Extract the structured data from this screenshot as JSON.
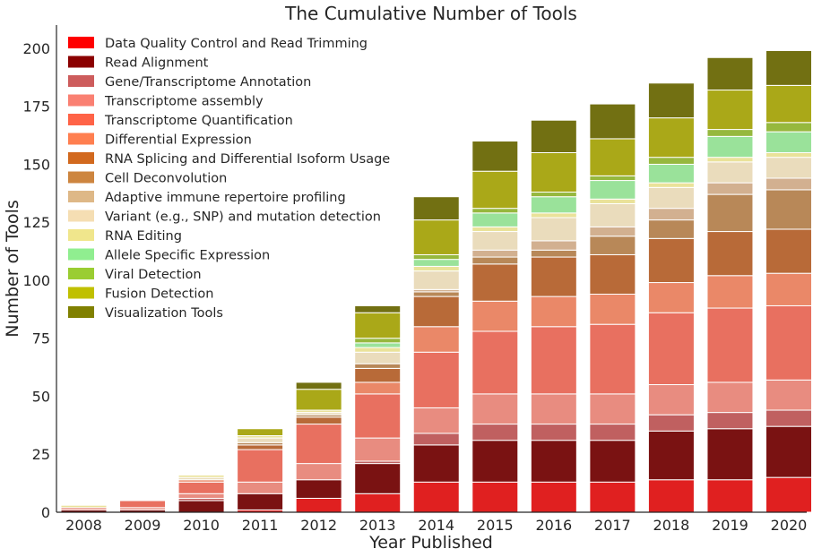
{
  "chart_data": {
    "type": "bar",
    "stacked": true,
    "title": "The Cumulative Number of Tools",
    "xlabel": "Year Published",
    "ylabel": "Number of Tools",
    "ylim": [
      0,
      210
    ],
    "yticks": [
      0,
      25,
      50,
      75,
      100,
      125,
      150,
      175,
      200
    ],
    "grid": false,
    "legend_position": "top-left",
    "categories": [
      "2008",
      "2009",
      "2010",
      "2011",
      "2012",
      "2013",
      "2014",
      "2015",
      "2016",
      "2017",
      "2018",
      "2019",
      "2020"
    ],
    "series": [
      {
        "name": "Data Quality Control and Read Trimming",
        "color": "#ff0000",
        "bar_color": "#e02020",
        "values": [
          0,
          0,
          0,
          1,
          6,
          8,
          13,
          13,
          13,
          13,
          14,
          14,
          15
        ]
      },
      {
        "name": "Read Alignment",
        "color": "#8b0000",
        "bar_color": "#7a1212",
        "values": [
          1,
          1,
          5,
          7,
          8,
          13,
          16,
          18,
          18,
          18,
          21,
          22,
          22
        ]
      },
      {
        "name": "Gene/Transcriptome Annotation",
        "color": "#cd5c5c",
        "bar_color": "#c06060",
        "values": [
          0,
          0,
          1,
          0,
          0,
          1,
          5,
          7,
          7,
          7,
          7,
          7,
          7
        ]
      },
      {
        "name": "Transcriptome assembly",
        "color": "#fa8072",
        "bar_color": "#e88c80",
        "values": [
          1,
          1,
          2,
          5,
          7,
          10,
          11,
          13,
          13,
          13,
          13,
          13,
          13
        ]
      },
      {
        "name": "Transcriptome Quantification",
        "color": "#ff6347",
        "bar_color": "#e87060",
        "values": [
          0,
          3,
          5,
          14,
          17,
          19,
          24,
          27,
          29,
          30,
          31,
          32,
          32
        ]
      },
      {
        "name": "Differential Expression",
        "color": "#ff7f50",
        "bar_color": "#ea8868",
        "values": [
          0,
          0,
          1,
          0,
          0,
          5,
          11,
          13,
          13,
          13,
          13,
          14,
          14
        ]
      },
      {
        "name": "RNA Splicing and Differential Isoform Usage",
        "color": "#d2691e",
        "bar_color": "#b86a38",
        "values": [
          0,
          0,
          0,
          2,
          3,
          6,
          13,
          16,
          17,
          17,
          19,
          19,
          19
        ]
      },
      {
        "name": "Cell Deconvolution",
        "color": "#cd853f",
        "bar_color": "#b88858",
        "values": [
          0,
          0,
          0,
          1,
          1,
          2,
          2,
          3,
          3,
          8,
          8,
          16,
          17
        ]
      },
      {
        "name": "Adaptive immune repertoire profiling",
        "color": "#deb887",
        "bar_color": "#d2b090",
        "values": [
          0,
          0,
          0,
          0,
          0,
          0,
          1,
          3,
          4,
          4,
          5,
          5,
          5
        ]
      },
      {
        "name": "Variant (e.g., SNP) and mutation detection",
        "color": "#f5deb3",
        "bar_color": "#eadcbc",
        "values": [
          0,
          0,
          1,
          2,
          1,
          5,
          8,
          8,
          10,
          10,
          9,
          9,
          9
        ]
      },
      {
        "name": "RNA Editing",
        "color": "#f0e68c",
        "bar_color": "#eae29a",
        "values": [
          1,
          0,
          1,
          1,
          1,
          2,
          2,
          2,
          2,
          2,
          2,
          2,
          2
        ]
      },
      {
        "name": "Allele Specific Expression",
        "color": "#90ee90",
        "bar_color": "#9ae29a",
        "values": [
          0,
          0,
          0,
          0,
          0,
          2,
          3,
          6,
          7,
          8,
          8,
          9,
          9
        ]
      },
      {
        "name": "Viral Detection",
        "color": "#9acd32",
        "bar_color": "#96b83e",
        "values": [
          0,
          0,
          0,
          0,
          0,
          2,
          2,
          2,
          2,
          2,
          3,
          3,
          4
        ]
      },
      {
        "name": "Fusion Detection",
        "color": "#c0c000",
        "bar_color": "#aaa818",
        "values": [
          0,
          0,
          0,
          3,
          9,
          11,
          15,
          16,
          17,
          16,
          17,
          17,
          16
        ]
      },
      {
        "name": "Visualization Tools",
        "color": "#808000",
        "bar_color": "#727012",
        "values": [
          0,
          0,
          0,
          0,
          3,
          3,
          10,
          13,
          14,
          15,
          15,
          14,
          15
        ]
      }
    ]
  }
}
